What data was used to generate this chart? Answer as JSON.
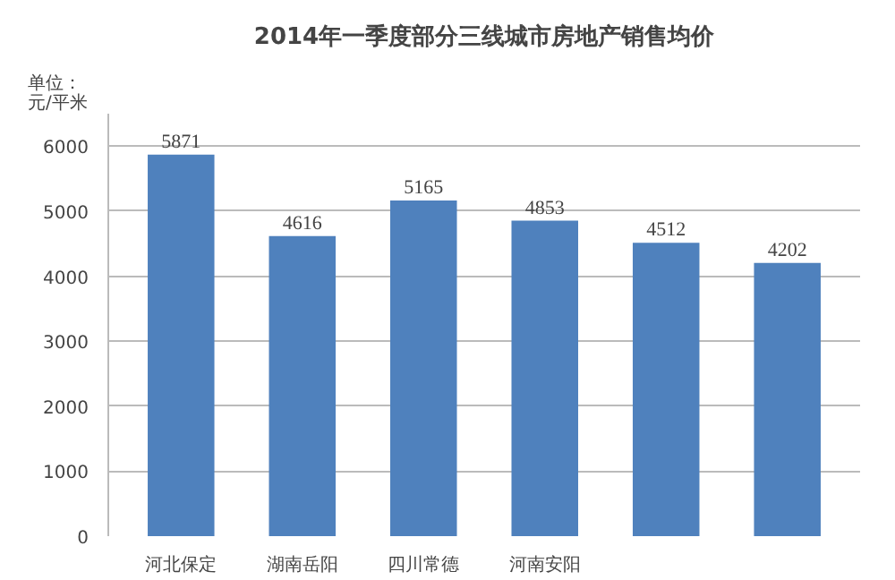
{
  "chart_data": {
    "type": "bar",
    "title": "2014年一季度部分三线城市房地产销售均价",
    "ylabel": "单位：元/平米",
    "categories": [
      "河北保定",
      "湖南岳阳",
      "四川常德",
      "河南安阳",
      null,
      null
    ],
    "values": [
      5871,
      4616,
      5165,
      4853,
      4512,
      4202
    ],
    "color": "#4f81bd",
    "ylim": [
      0,
      6500
    ],
    "yticks": [
      0,
      1000,
      2000,
      3000,
      4000,
      5000,
      6000
    ],
    "grid": "y",
    "data_labels": true
  }
}
